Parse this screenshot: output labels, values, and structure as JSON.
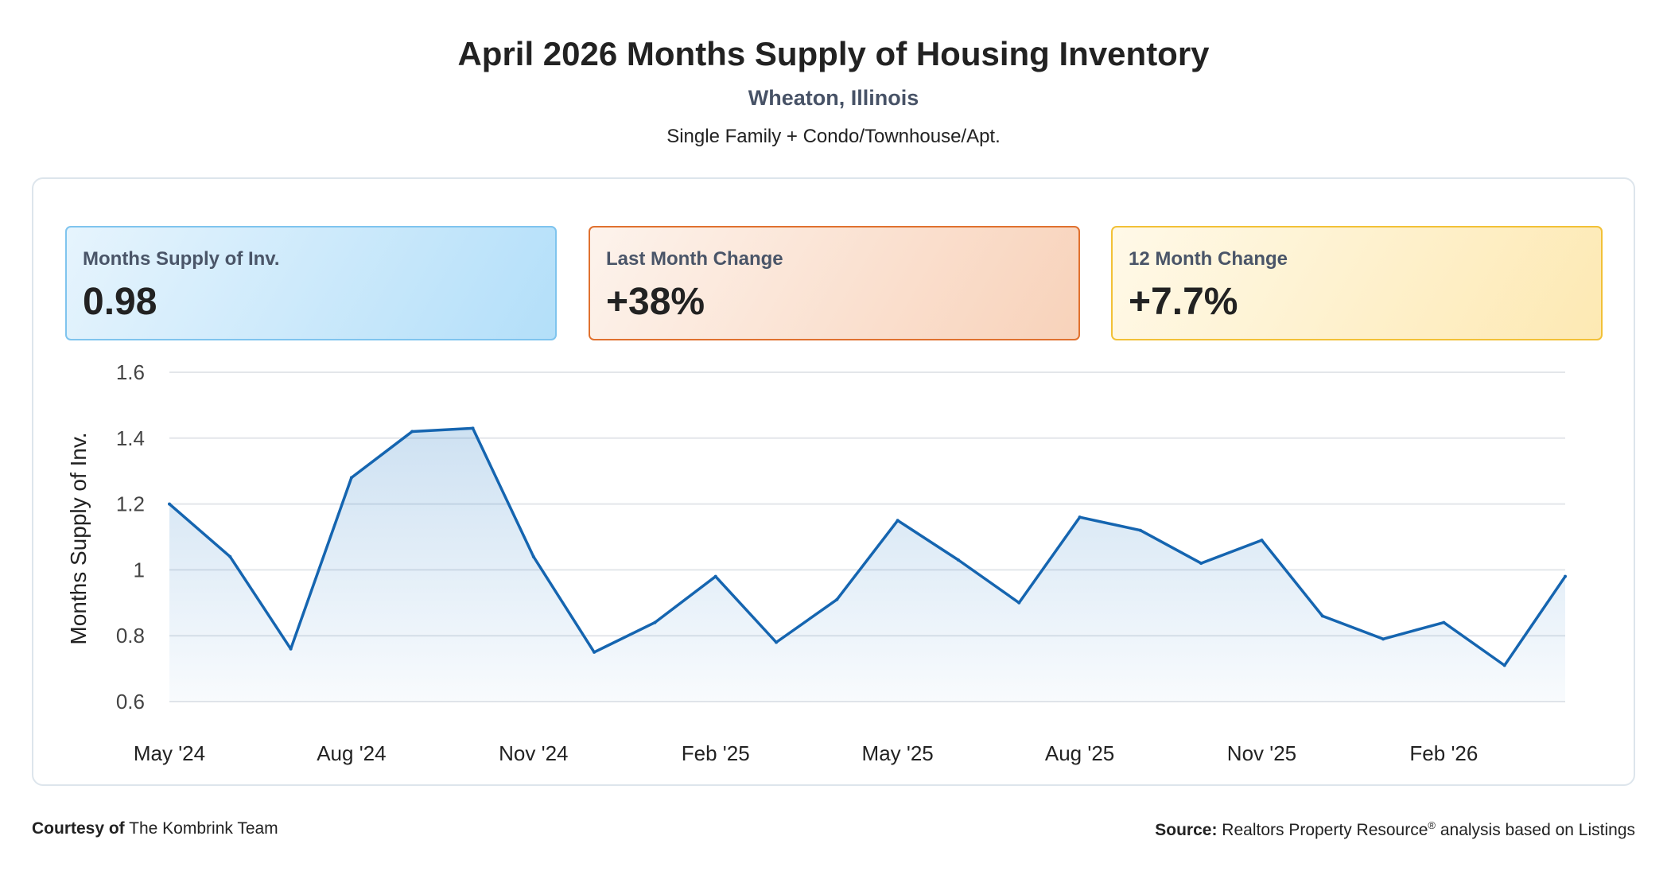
{
  "header": {
    "title": "April 2026 Months Supply of Housing Inventory",
    "location": "Wheaton, Illinois",
    "property_types": "Single Family + Condo/Townhouse/Apt."
  },
  "kpis": [
    {
      "label": "Months Supply of Inv.",
      "value": "0.98"
    },
    {
      "label": "Last Month Change",
      "value": "+38%"
    },
    {
      "label": "12 Month Change",
      "value": "+7.7%"
    }
  ],
  "chart_data": {
    "type": "area",
    "title": "",
    "xlabel": "",
    "ylabel": "Months Supply of Inv.",
    "ylim": [
      0.6,
      1.6
    ],
    "yticks": [
      "0.6",
      "0.8",
      "1",
      "1.2",
      "1.4",
      "1.6"
    ],
    "x": [
      "May '24",
      "Jun '24",
      "Jul '24",
      "Aug '24",
      "Sep '24",
      "Oct '24",
      "Nov '24",
      "Dec '24",
      "Jan '25",
      "Feb '25",
      "Mar '25",
      "Apr '25",
      "May '25",
      "Jun '25",
      "Jul '25",
      "Aug '25",
      "Sep '25",
      "Oct '25",
      "Nov '25",
      "Dec '25",
      "Jan '26",
      "Feb '26",
      "Mar '26",
      "Apr '26"
    ],
    "xtick_labels": [
      "May '24",
      "Aug '24",
      "Nov '24",
      "Feb '25",
      "May '25",
      "Aug '25",
      "Nov '25",
      "Feb '26"
    ],
    "series": [
      {
        "values": [
          1.2,
          1.04,
          0.76,
          1.28,
          1.42,
          1.43,
          1.04,
          0.75,
          0.84,
          0.98,
          0.78,
          0.91,
          1.15,
          1.03,
          0.9,
          1.16,
          1.12,
          1.02,
          1.09,
          0.86,
          0.79,
          0.84,
          0.71,
          0.98
        ]
      }
    ],
    "colors": {
      "line": "#1565b0",
      "fill": "#1f77c4",
      "grid": "#e3e6ea"
    },
    "grid": true,
    "legend": "none"
  },
  "footer": {
    "courtesy_label": "Courtesy of",
    "courtesy_name": "The Kombrink Team",
    "source_label": "Source:",
    "source_name": "Realtors Property Resource",
    "source_mark": "®",
    "source_suffix": "analysis based on Listings"
  }
}
